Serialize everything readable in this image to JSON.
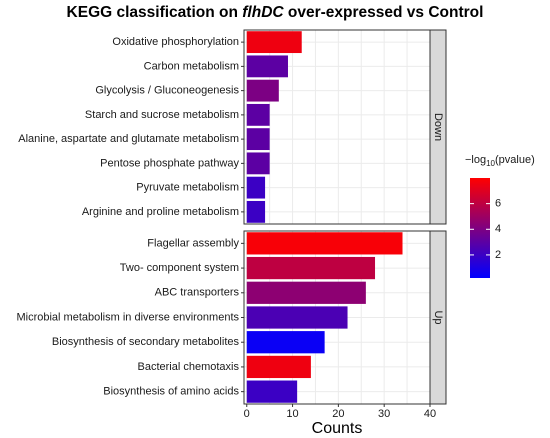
{
  "chart_data": {
    "type": "bar",
    "orientation": "horizontal",
    "title": [
      "KEGG classification on ",
      "flhDC",
      " over-expressed vs Control"
    ],
    "title_italic": [
      false,
      true,
      false
    ],
    "xlabel": "Counts",
    "xlim": [
      -0.6,
      40
    ],
    "xticks": [
      0,
      10,
      20,
      30,
      40
    ],
    "grid": true,
    "facets": [
      {
        "name": "Down",
        "categories": [
          "Oxidative phosphorylation",
          "Carbon metabolism",
          "Glycolysis / Gluconeogenesis",
          "Starch and sucrose metabolism",
          "Alanine, aspartate and glutamate metabolism",
          "Pentose phosphate pathway",
          "Pyruvate metabolism",
          "Arginine and proline metabolism"
        ],
        "values": [
          12,
          9,
          7,
          5,
          5,
          5,
          4,
          4
        ],
        "color_values": [
          7.5,
          3,
          4,
          3,
          3,
          3,
          2,
          2
        ]
      },
      {
        "name": "Up",
        "categories": [
          "Flagellar assembly",
          "Two- component system",
          "ABC transporters",
          "Microbial metabolism in diverse environments",
          "Biosynthesis of secondary metabolites",
          "Bacterial chemotaxis",
          "Biosynthesis of amino acids"
        ],
        "values": [
          34,
          28,
          26,
          22,
          17,
          14,
          11
        ],
        "color_values": [
          7.8,
          6,
          4.5,
          2.5,
          0.5,
          7.5,
          2
        ]
      }
    ],
    "colorbar": {
      "title": [
        "−log",
        "10",
        "(pvalue)"
      ],
      "lim": [
        0.2,
        8
      ],
      "ticks": [
        2,
        4,
        6
      ],
      "low": "#0000ff",
      "high": "#ff0000"
    }
  }
}
